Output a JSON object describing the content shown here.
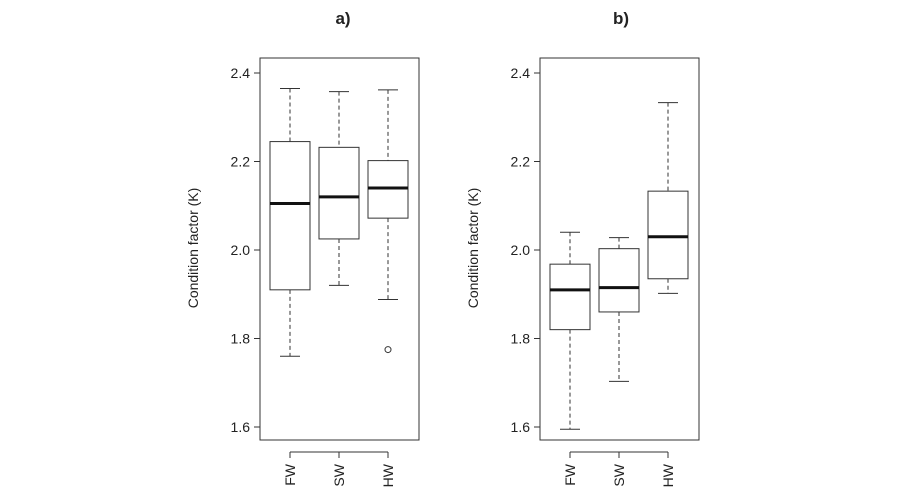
{
  "chart_data": [
    {
      "type": "box",
      "title": "a)",
      "xlabel": "",
      "ylabel": "Condition factor (K)",
      "ylim": [
        1.56,
        2.44
      ],
      "yticks": [
        "1.6",
        "1.8",
        "2.0",
        "2.2",
        "2.4"
      ],
      "categories": [
        "FW",
        "SW",
        "HW"
      ],
      "boxes": [
        {
          "whisker_low": 1.76,
          "q1": 1.91,
          "median": 2.105,
          "q3": 2.245,
          "whisker_high": 2.365,
          "outliers": []
        },
        {
          "whisker_low": 1.92,
          "q1": 2.025,
          "median": 2.12,
          "q3": 2.232,
          "whisker_high": 2.358,
          "outliers": []
        },
        {
          "whisker_low": 1.888,
          "q1": 2.072,
          "median": 2.14,
          "q3": 2.202,
          "whisker_high": 2.362,
          "outliers": [
            1.775
          ]
        }
      ],
      "grid": false
    },
    {
      "type": "box",
      "title": "b)",
      "xlabel": "",
      "ylabel": "Condition factor (K)",
      "ylim": [
        1.56,
        2.44
      ],
      "yticks": [
        "1.6",
        "1.8",
        "2.0",
        "2.2",
        "2.4"
      ],
      "categories": [
        "FW",
        "SW",
        "HW"
      ],
      "boxes": [
        {
          "whisker_low": 1.595,
          "q1": 1.82,
          "median": 1.91,
          "q3": 1.968,
          "whisker_high": 2.04,
          "outliers": []
        },
        {
          "whisker_low": 1.703,
          "q1": 1.86,
          "median": 1.915,
          "q3": 2.003,
          "whisker_high": 2.028,
          "outliers": []
        },
        {
          "whisker_low": 1.902,
          "q1": 1.935,
          "median": 2.03,
          "q3": 2.133,
          "whisker_high": 2.333,
          "outliers": []
        }
      ],
      "grid": false
    }
  ]
}
